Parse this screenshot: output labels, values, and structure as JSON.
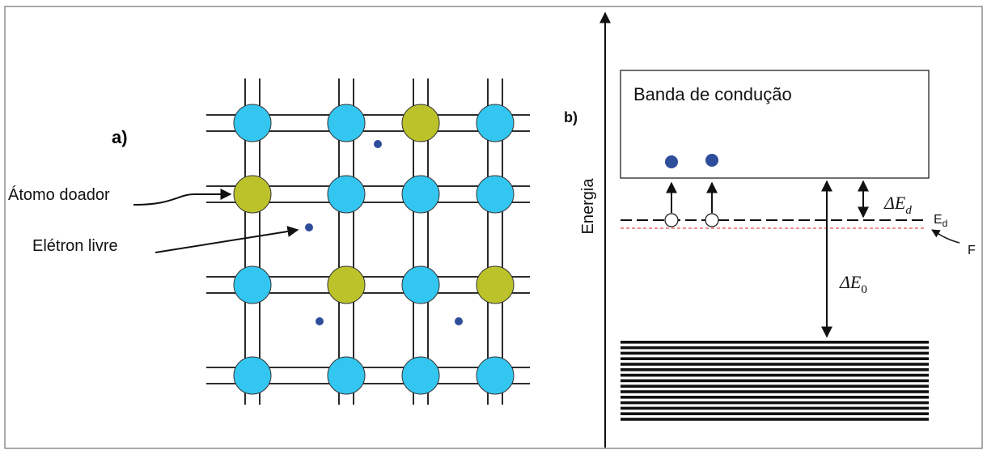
{
  "panel_a": {
    "label": "a)",
    "donor_label": "Átomo doador",
    "electron_label": "Elétron livre"
  },
  "panel_b": {
    "label": "b)",
    "axis_label": "Energia",
    "conduction_band": "Banda de condução",
    "delta_ed": {
      "symbol": "ΔE",
      "subscript": "d"
    },
    "donor_level": {
      "symbol": "E",
      "subscript": "d"
    },
    "fermi_level": "F",
    "delta_e0": {
      "symbol": "ΔE",
      "subscript": "0"
    }
  }
}
